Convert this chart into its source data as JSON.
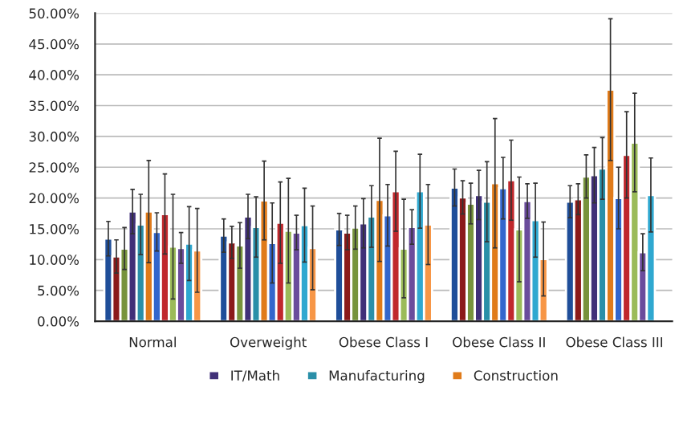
{
  "chart_data": {
    "type": "bar",
    "categories": [
      "Normal",
      "Overweight",
      "Obese Class I",
      "Obese Class II",
      "Obese Class III"
    ],
    "ylim": [
      0,
      50
    ],
    "yticks": [
      {
        "value": 0,
        "label": "0.00%"
      },
      {
        "value": 5,
        "label": "5.00%"
      },
      {
        "value": 10,
        "label": "10.00%"
      },
      {
        "value": 15,
        "label": "15.00%"
      },
      {
        "value": 20,
        "label": "20.00%"
      },
      {
        "value": 25,
        "label": "25.00%"
      },
      {
        "value": 30,
        "label": "30.00%"
      },
      {
        "value": 35,
        "label": "35.00%"
      },
      {
        "value": 40,
        "label": "40.00%"
      },
      {
        "value": 45,
        "label": "45.00%"
      },
      {
        "value": 50,
        "label": "50.00%"
      }
    ],
    "grid": "y",
    "legend": "bottom",
    "series": [
      {
        "color": "#1f4e99",
        "values": [
          13.4,
          13.9,
          14.9,
          21.7,
          19.4
        ],
        "errors": [
          2.8,
          2.7,
          2.6,
          3.0,
          2.6
        ]
      },
      {
        "color": "#8b1a1a",
        "values": [
          10.5,
          12.8,
          14.4,
          20.1,
          19.8
        ],
        "errors": [
          2.7,
          2.6,
          2.8,
          2.7,
          2.5
        ]
      },
      {
        "color": "#77933c",
        "values": [
          11.8,
          12.3,
          15.2,
          19.1,
          23.5
        ],
        "errors": [
          3.4,
          3.7,
          3.5,
          3.3,
          3.5
        ]
      },
      {
        "name": "IT/Math",
        "color": "#403078",
        "values": [
          17.8,
          17.0,
          15.9,
          20.5,
          23.7
        ],
        "errors": [
          3.6,
          3.6,
          4.0,
          4.0,
          4.5
        ]
      },
      {
        "name": "Manufacturing",
        "color": "#2a8fa8",
        "values": [
          15.7,
          15.3,
          17.0,
          19.4,
          24.8
        ],
        "errors": [
          4.9,
          4.9,
          5.0,
          6.5,
          5.0
        ]
      },
      {
        "name": "Construction",
        "color": "#e07b1a",
        "values": [
          17.8,
          19.6,
          19.7,
          22.4,
          37.6
        ],
        "errors": [
          8.3,
          6.4,
          10.0,
          10.5,
          11.5
        ]
      },
      {
        "color": "#3366cc",
        "values": [
          14.5,
          12.7,
          17.2,
          21.6,
          20.0
        ],
        "errors": [
          3.1,
          6.5,
          5.0,
          5.0,
          5.0
        ]
      },
      {
        "color": "#c0282d",
        "values": [
          17.4,
          16.0,
          21.1,
          22.9,
          27.0
        ],
        "errors": [
          6.5,
          6.6,
          6.5,
          6.5,
          7.0
        ]
      },
      {
        "color": "#9bbb59",
        "values": [
          12.1,
          14.7,
          11.8,
          14.9,
          29.0
        ],
        "errors": [
          8.5,
          8.5,
          8.0,
          8.5,
          8.0
        ]
      },
      {
        "color": "#6a4c9c",
        "values": [
          11.9,
          14.4,
          15.3,
          19.5,
          11.2
        ],
        "errors": [
          2.5,
          2.8,
          2.8,
          2.8,
          3.0
        ]
      },
      {
        "color": "#2fa8d0",
        "values": [
          12.6,
          15.6,
          21.1,
          16.4,
          20.5
        ],
        "errors": [
          6.0,
          6.0,
          6.0,
          6.0,
          6.0
        ]
      },
      {
        "color": "#f79646",
        "values": [
          11.5,
          11.9,
          15.7,
          10.1,
          null
        ],
        "errors": [
          6.8,
          6.8,
          6.5,
          6.0,
          null
        ]
      }
    ]
  }
}
